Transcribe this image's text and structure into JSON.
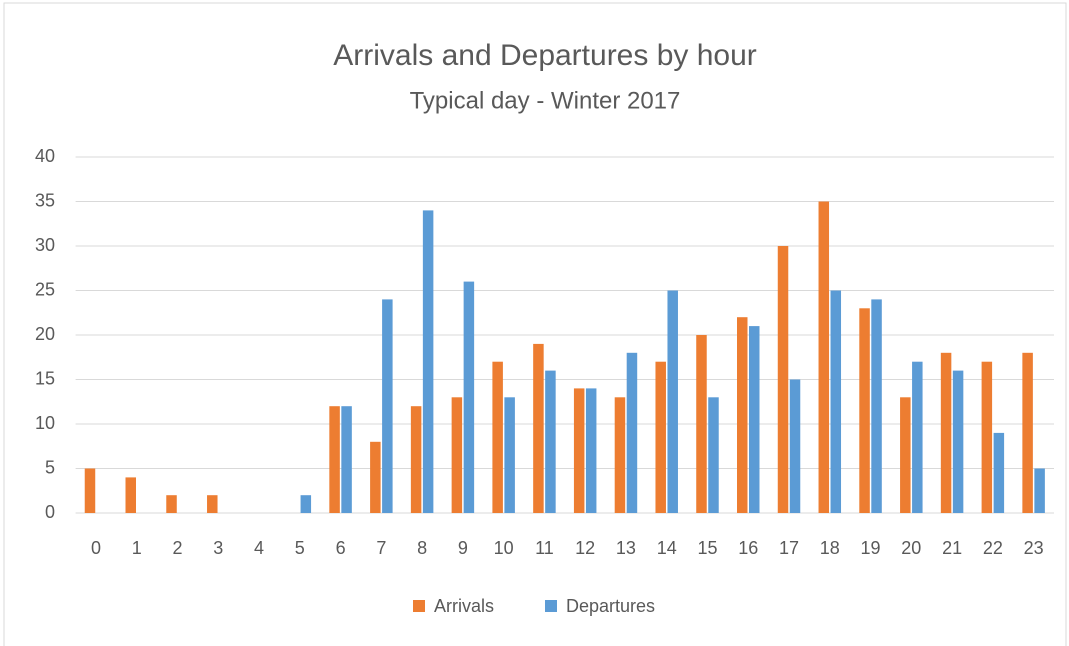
{
  "chart_data": {
    "type": "bar",
    "title": "Arrivals and Departures by hour",
    "subtitle": "Typical day - Winter 2017",
    "categories": [
      "0",
      "1",
      "2",
      "3",
      "4",
      "5",
      "6",
      "7",
      "8",
      "9",
      "10",
      "11",
      "12",
      "13",
      "14",
      "15",
      "16",
      "17",
      "18",
      "19",
      "20",
      "21",
      "22",
      "23"
    ],
    "series": [
      {
        "name": "Arrivals",
        "color": "#ed7d31",
        "values": [
          5,
          4,
          2,
          2,
          0,
          0,
          12,
          8,
          12,
          13,
          17,
          19,
          14,
          13,
          17,
          20,
          22,
          30,
          35,
          23,
          13,
          18,
          17,
          18
        ]
      },
      {
        "name": "Departures",
        "color": "#5b9bd5",
        "values": [
          0,
          0,
          0,
          0,
          0,
          2,
          12,
          24,
          34,
          26,
          13,
          16,
          14,
          18,
          25,
          13,
          21,
          15,
          25,
          24,
          17,
          16,
          9,
          5
        ]
      }
    ],
    "ylim": [
      0,
      40
    ],
    "yticks": [
      0,
      5,
      10,
      15,
      20,
      25,
      30,
      35,
      40
    ],
    "grid": true,
    "legend": "bottom"
  }
}
